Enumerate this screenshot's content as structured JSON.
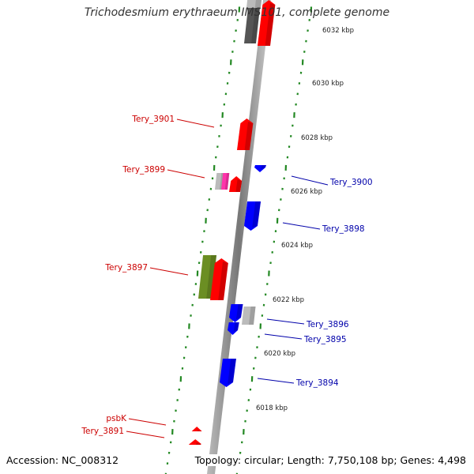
{
  "title": "Trichodesmium erythraeum IMS101, complete genome",
  "footer": {
    "accession": "Accession: NC_008312",
    "summary": "Topology: circular; Length: 7,750,108 bp; Genes: 4,498"
  },
  "colors": {
    "forward": "#ff0000",
    "reverse": "#0000ff",
    "label_forward": "#cc0000",
    "label_reverse": "#0000aa",
    "tick": "#228822",
    "backbone": "#888888",
    "gray_gene": "#bbbbbb",
    "dark_gene": "#555555",
    "olive_gene": "#6b8e23",
    "pink_gene": "#ff33aa"
  },
  "scale": {
    "unit": "kbp",
    "labels": [
      "6032 kbp",
      "6030 kbp",
      "6028 kbp",
      "6026 kbp",
      "6024 kbp",
      "6022 kbp",
      "6020 kbp",
      "6018 kbp"
    ]
  },
  "genes": [
    {
      "label": "Tery_3901",
      "strand": "forward"
    },
    {
      "label": "Tery_3899",
      "strand": "forward"
    },
    {
      "label": "Tery_3897",
      "strand": "forward"
    },
    {
      "label": "psbK",
      "strand": "forward"
    },
    {
      "label": "Tery_3891",
      "strand": "forward"
    },
    {
      "label": "Tery_3900",
      "strand": "reverse"
    },
    {
      "label": "Tery_3898",
      "strand": "reverse"
    },
    {
      "label": "Tery_3896",
      "strand": "reverse"
    },
    {
      "label": "Tery_3895",
      "strand": "reverse"
    },
    {
      "label": "Tery_3894",
      "strand": "reverse"
    }
  ]
}
